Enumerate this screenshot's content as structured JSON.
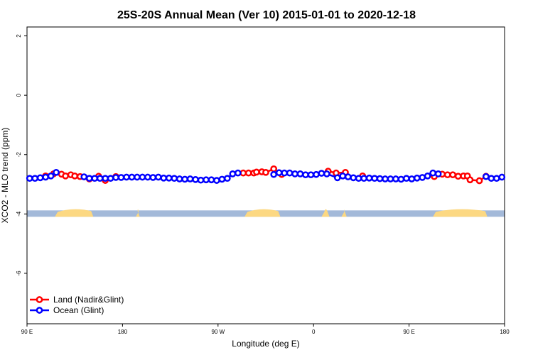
{
  "chart_data": {
    "type": "line",
    "title": "25S-20S Annual Mean (Ver 10)   2015-01-01 to 2020-12-18",
    "xlabel": "Longitude (deg E)",
    "ylabel": "XCO2 - MLO trend (ppm)",
    "xlim": [
      90,
      450
    ],
    "ylim": [
      -7.7,
      2.3
    ],
    "x_ticks": [
      {
        "value": 90,
        "label": "90 E"
      },
      {
        "value": 162,
        "label": "180"
      },
      {
        "value": 234,
        "label": "90 W"
      },
      {
        "value": 306,
        "label": "0"
      },
      {
        "value": 378,
        "label": "90 E"
      },
      {
        "value": 450,
        "label": "180"
      }
    ],
    "y_ticks": [
      {
        "value": 2,
        "label": "2"
      },
      {
        "value": 0,
        "label": "0"
      },
      {
        "value": -2,
        "label": "-2"
      },
      {
        "value": -4,
        "label": "-4"
      },
      {
        "value": -6,
        "label": "-6"
      }
    ],
    "grid": false,
    "legend_position": "bottom-left",
    "colors": {
      "land": "#ff0000",
      "ocean": "#0000ff",
      "ocean_strip": "#a3b9d9",
      "land_strip": "#fcd882"
    },
    "land_strip": {
      "y": -4.0,
      "lon_ranges": [
        [
          111,
          140
        ],
        [
          172,
          175
        ],
        [
          254,
          281
        ],
        [
          312,
          318
        ],
        [
          327,
          331
        ],
        [
          396,
          437
        ]
      ]
    },
    "series": [
      {
        "name": "Land (Nadir&Glint)",
        "color": "#ff0000",
        "x": [
          104,
          110,
          116,
          119,
          123,
          126,
          130,
          137,
          144,
          149,
          157,
          253,
          257,
          261,
          263,
          267,
          270,
          276,
          282,
          317,
          323,
          330,
          343,
          397,
          403,
          407,
          411,
          415,
          419,
          422,
          424,
          431,
          436
        ],
        "y": [
          -2.72,
          -2.65,
          -2.66,
          -2.72,
          -2.68,
          -2.72,
          -2.74,
          -2.82,
          -2.73,
          -2.87,
          -2.74,
          -2.62,
          -2.62,
          -2.62,
          -2.59,
          -2.58,
          -2.6,
          -2.48,
          -2.67,
          -2.56,
          -2.62,
          -2.6,
          -2.72,
          -2.74,
          -2.66,
          -2.68,
          -2.68,
          -2.73,
          -2.72,
          -2.72,
          -2.85,
          -2.88,
          -2.73
        ]
      },
      {
        "name": "Ocean (Glint)",
        "color": "#0000ff",
        "x": [
          92,
          96,
          100,
          104,
          108,
          112,
          133,
          137,
          141,
          145,
          149,
          153,
          157,
          161,
          165,
          169,
          173,
          177,
          181,
          185,
          189,
          193,
          197,
          201,
          205,
          209,
          213,
          217,
          221,
          225,
          229,
          233,
          237,
          241,
          245,
          249,
          276,
          280,
          284,
          288,
          292,
          296,
          300,
          304,
          308,
          312,
          316,
          324,
          328,
          332,
          336,
          340,
          344,
          348,
          352,
          356,
          360,
          364,
          368,
          372,
          376,
          380,
          384,
          388,
          392,
          396,
          400,
          436,
          440,
          444,
          448
        ],
        "y": [
          -2.8,
          -2.8,
          -2.78,
          -2.76,
          -2.72,
          -2.6,
          -2.75,
          -2.8,
          -2.8,
          -2.8,
          -2.8,
          -2.8,
          -2.77,
          -2.77,
          -2.76,
          -2.76,
          -2.76,
          -2.76,
          -2.76,
          -2.77,
          -2.76,
          -2.79,
          -2.79,
          -2.8,
          -2.82,
          -2.83,
          -2.82,
          -2.84,
          -2.86,
          -2.85,
          -2.85,
          -2.87,
          -2.83,
          -2.8,
          -2.65,
          -2.62,
          -2.67,
          -2.61,
          -2.62,
          -2.62,
          -2.65,
          -2.65,
          -2.68,
          -2.68,
          -2.67,
          -2.63,
          -2.65,
          -2.78,
          -2.72,
          -2.75,
          -2.78,
          -2.8,
          -2.8,
          -2.79,
          -2.8,
          -2.81,
          -2.82,
          -2.82,
          -2.82,
          -2.83,
          -2.8,
          -2.82,
          -2.79,
          -2.77,
          -2.72,
          -2.62,
          -2.65,
          -2.74,
          -2.8,
          -2.8,
          -2.76
        ]
      }
    ]
  }
}
